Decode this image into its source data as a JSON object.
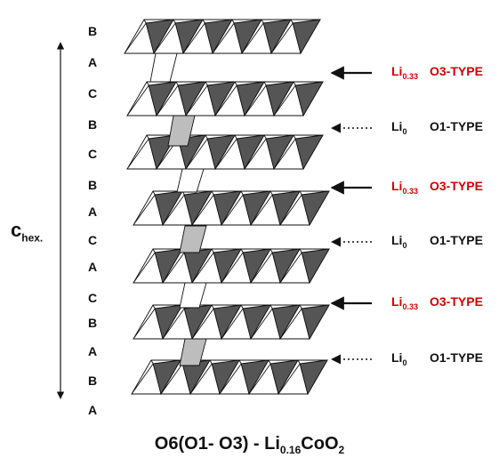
{
  "stacking_sequence": [
    "B",
    "A",
    "C",
    "B",
    "C",
    "B",
    "A",
    "C",
    "A",
    "C",
    "B",
    "A",
    "B",
    "A"
  ],
  "axis_label": {
    "main": "c",
    "sub": "hex."
  },
  "interlayers": [
    {
      "li_main": "Li",
      "li_sub": "0.33",
      "type": "O3-TYPE",
      "color": "#d40000",
      "arrow": "solid"
    },
    {
      "li_main": "Li",
      "li_sub": "0",
      "type": "O1-TYPE",
      "color": "#111111",
      "arrow": "dotted"
    },
    {
      "li_main": "Li",
      "li_sub": "0.33",
      "type": "O3-TYPE",
      "color": "#d40000",
      "arrow": "solid"
    },
    {
      "li_main": "Li",
      "li_sub": "0",
      "type": "O1-TYPE",
      "color": "#111111",
      "arrow": "dotted"
    },
    {
      "li_main": "Li",
      "li_sub": "0.33",
      "type": "O3-TYPE",
      "color": "#d40000",
      "arrow": "solid"
    },
    {
      "li_main": "Li",
      "li_sub": "0",
      "type": "O1-TYPE",
      "color": "#111111",
      "arrow": "dotted"
    }
  ],
  "formula": {
    "part1": "O6(O1- O3) - Li",
    "sub1": "0.16",
    "part2": "CoO",
    "sub2": "2"
  }
}
